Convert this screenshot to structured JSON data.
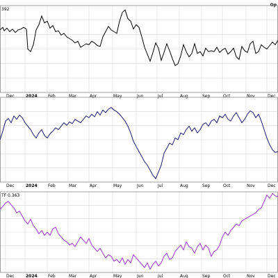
{
  "header": {
    "corner_label": "Op"
  },
  "chart_data": [
    {
      "type": "line",
      "panel_label": "392",
      "color": "#000000",
      "xlabel": "",
      "ylabel": "",
      "grid": true,
      "x_tick_labels": [
        "Dec",
        "2024",
        "Feb",
        "Mar",
        "Apr",
        "May",
        "Jun",
        "Jul",
        "Aug",
        "Sep",
        "Oct",
        "Nov",
        "Dec",
        ""
      ],
      "x_tick_bold": [
        false,
        true,
        false,
        false,
        false,
        false,
        false,
        false,
        false,
        false,
        false,
        false,
        false,
        false
      ],
      "ylim": [
        0,
        100
      ],
      "series": [
        {
          "x": [
            0,
            0.01,
            0.015,
            0.025,
            0.035,
            0.045,
            0.055,
            0.065,
            0.075,
            0.085,
            0.095,
            0.1,
            0.11,
            0.12,
            0.13,
            0.14,
            0.15,
            0.16,
            0.17,
            0.18,
            0.19,
            0.2,
            0.21,
            0.22,
            0.23,
            0.24,
            0.25,
            0.26,
            0.27,
            0.28,
            0.29,
            0.3,
            0.31,
            0.32,
            0.33,
            0.34,
            0.35,
            0.36,
            0.37,
            0.38,
            0.39,
            0.4,
            0.41,
            0.42,
            0.43,
            0.44,
            0.45,
            0.46,
            0.47,
            0.48,
            0.49,
            0.5,
            0.51,
            0.52,
            0.53,
            0.54,
            0.55,
            0.56,
            0.57,
            0.58,
            0.59,
            0.6,
            0.61,
            0.62,
            0.63,
            0.64,
            0.65,
            0.66,
            0.67,
            0.68,
            0.69,
            0.7,
            0.71,
            0.72,
            0.73,
            0.74,
            0.75,
            0.76,
            0.77,
            0.78,
            0.79,
            0.8,
            0.81,
            0.82,
            0.83,
            0.84,
            0.85,
            0.86,
            0.87,
            0.88,
            0.89,
            0.9,
            0.91,
            0.92,
            0.93,
            0.94,
            0.95,
            0.96,
            0.97,
            0.98,
            0.99,
            1.0
          ],
          "y": [
            72,
            75,
            71,
            74,
            70,
            73,
            69,
            72,
            73,
            75,
            73,
            50,
            47,
            55,
            72,
            78,
            88,
            80,
            82,
            74,
            77,
            70,
            71,
            66,
            68,
            64,
            62,
            60,
            57,
            59,
            52,
            54,
            56,
            55,
            59,
            57,
            54,
            53,
            64,
            70,
            76,
            72,
            70,
            68,
            82,
            92,
            95,
            85,
            82,
            73,
            78,
            75,
            64,
            52,
            44,
            36,
            46,
            57,
            51,
            37,
            46,
            56,
            48,
            39,
            31,
            33,
            42,
            55,
            47,
            41,
            45,
            56,
            45,
            47,
            42,
            51,
            47,
            48,
            47,
            52,
            46,
            49,
            51,
            44,
            47,
            51,
            41,
            38,
            53,
            48,
            46,
            56,
            59,
            45,
            47,
            55,
            52,
            50,
            54,
            58,
            55,
            60
          ]
        }
      ]
    },
    {
      "type": "line",
      "panel_label": "",
      "color": "#1a1a6e",
      "xlabel": "",
      "ylabel": "",
      "grid": true,
      "x_tick_labels": [
        "Dec",
        "2024",
        "Feb",
        "Mar",
        "Apr",
        "May",
        "Jun",
        "Jul",
        "Aug",
        "Sep",
        "Oct",
        "Nov",
        "Dec",
        ""
      ],
      "x_tick_bold": [
        false,
        true,
        false,
        false,
        false,
        false,
        false,
        false,
        false,
        false,
        false,
        false,
        false,
        false
      ],
      "ylim": [
        0,
        100
      ],
      "series": [
        {
          "x": [
            0,
            0.01,
            0.02,
            0.03,
            0.04,
            0.05,
            0.06,
            0.07,
            0.08,
            0.09,
            0.1,
            0.11,
            0.12,
            0.13,
            0.14,
            0.15,
            0.16,
            0.17,
            0.18,
            0.19,
            0.2,
            0.21,
            0.22,
            0.23,
            0.24,
            0.25,
            0.26,
            0.27,
            0.28,
            0.29,
            0.3,
            0.31,
            0.32,
            0.33,
            0.34,
            0.35,
            0.36,
            0.37,
            0.38,
            0.39,
            0.4,
            0.41,
            0.42,
            0.43,
            0.44,
            0.45,
            0.46,
            0.47,
            0.48,
            0.49,
            0.5,
            0.51,
            0.52,
            0.53,
            0.54,
            0.55,
            0.56,
            0.57,
            0.58,
            0.59,
            0.6,
            0.61,
            0.62,
            0.63,
            0.64,
            0.65,
            0.66,
            0.67,
            0.68,
            0.69,
            0.7,
            0.71,
            0.72,
            0.73,
            0.74,
            0.75,
            0.76,
            0.77,
            0.78,
            0.79,
            0.8,
            0.81,
            0.82,
            0.83,
            0.84,
            0.85,
            0.86,
            0.87,
            0.88,
            0.89,
            0.9,
            0.91,
            0.92,
            0.93,
            0.94,
            0.95,
            0.96,
            0.97,
            0.98,
            0.99,
            1.0
          ],
          "y": [
            50,
            60,
            72,
            75,
            70,
            78,
            74,
            79,
            76,
            70,
            66,
            62,
            56,
            52,
            58,
            62,
            55,
            52,
            57,
            60,
            64,
            62,
            66,
            70,
            67,
            71,
            69,
            74,
            72,
            70,
            74,
            78,
            76,
            80,
            77,
            83,
            79,
            85,
            82,
            86,
            88,
            85,
            83,
            80,
            76,
            72,
            66,
            58,
            48,
            42,
            36,
            30,
            24,
            20,
            14,
            8,
            4,
            12,
            20,
            34,
            40,
            46,
            44,
            52,
            50,
            58,
            56,
            62,
            66,
            60,
            64,
            58,
            62,
            68,
            70,
            66,
            72,
            74,
            70,
            78,
            76,
            80,
            74,
            72,
            78,
            82,
            76,
            70,
            74,
            80,
            84,
            82,
            76,
            80,
            72,
            62,
            52,
            44,
            38,
            35,
            36
          ]
        }
      ]
    },
    {
      "type": "line",
      "panel_label": "TF 0.363",
      "color": "#9933cc",
      "xlabel": "",
      "ylabel": "",
      "grid": true,
      "x_tick_labels": [
        "Dec",
        "2024",
        "Feb",
        "Mar",
        "Apr",
        "May",
        "Jun",
        "Jul",
        "Aug",
        "Sep",
        "Oct",
        "Nov",
        "Dec",
        ""
      ],
      "x_tick_bold": [
        false,
        true,
        false,
        false,
        false,
        false,
        false,
        false,
        false,
        false,
        false,
        false,
        false,
        false
      ],
      "ylim": [
        0,
        100
      ],
      "series": [
        {
          "x": [
            0,
            0.01,
            0.02,
            0.03,
            0.04,
            0.05,
            0.06,
            0.07,
            0.08,
            0.09,
            0.1,
            0.11,
            0.12,
            0.13,
            0.14,
            0.15,
            0.16,
            0.17,
            0.18,
            0.19,
            0.2,
            0.21,
            0.22,
            0.23,
            0.24,
            0.25,
            0.26,
            0.27,
            0.28,
            0.29,
            0.3,
            0.31,
            0.32,
            0.33,
            0.34,
            0.35,
            0.36,
            0.37,
            0.38,
            0.39,
            0.4,
            0.41,
            0.42,
            0.43,
            0.44,
            0.45,
            0.46,
            0.47,
            0.48,
            0.49,
            0.5,
            0.51,
            0.52,
            0.53,
            0.54,
            0.55,
            0.56,
            0.57,
            0.58,
            0.59,
            0.6,
            0.61,
            0.62,
            0.63,
            0.64,
            0.65,
            0.66,
            0.67,
            0.68,
            0.69,
            0.7,
            0.71,
            0.72,
            0.73,
            0.74,
            0.75,
            0.76,
            0.77,
            0.78,
            0.79,
            0.8,
            0.81,
            0.82,
            0.83,
            0.84,
            0.85,
            0.86,
            0.87,
            0.88,
            0.89,
            0.9,
            0.91,
            0.92,
            0.93,
            0.94,
            0.95,
            0.96,
            0.97,
            0.98,
            0.99,
            1.0
          ],
          "y": [
            78,
            82,
            86,
            88,
            84,
            80,
            74,
            76,
            70,
            64,
            60,
            66,
            58,
            54,
            48,
            52,
            46,
            50,
            46,
            54,
            56,
            48,
            44,
            40,
            38,
            34,
            36,
            32,
            38,
            44,
            40,
            36,
            42,
            34,
            30,
            26,
            30,
            24,
            18,
            22,
            20,
            14,
            16,
            12,
            18,
            10,
            16,
            12,
            22,
            18,
            14,
            10,
            6,
            12,
            4,
            10,
            14,
            8,
            12,
            20,
            24,
            16,
            18,
            26,
            30,
            34,
            28,
            38,
            32,
            30,
            24,
            32,
            36,
            28,
            34,
            30,
            20,
            26,
            28,
            34,
            44,
            50,
            46,
            52,
            56,
            60,
            58,
            64,
            66,
            68,
            70,
            72,
            74,
            78,
            80,
            88,
            96,
            92,
            98,
            95,
            94
          ]
        }
      ]
    }
  ]
}
